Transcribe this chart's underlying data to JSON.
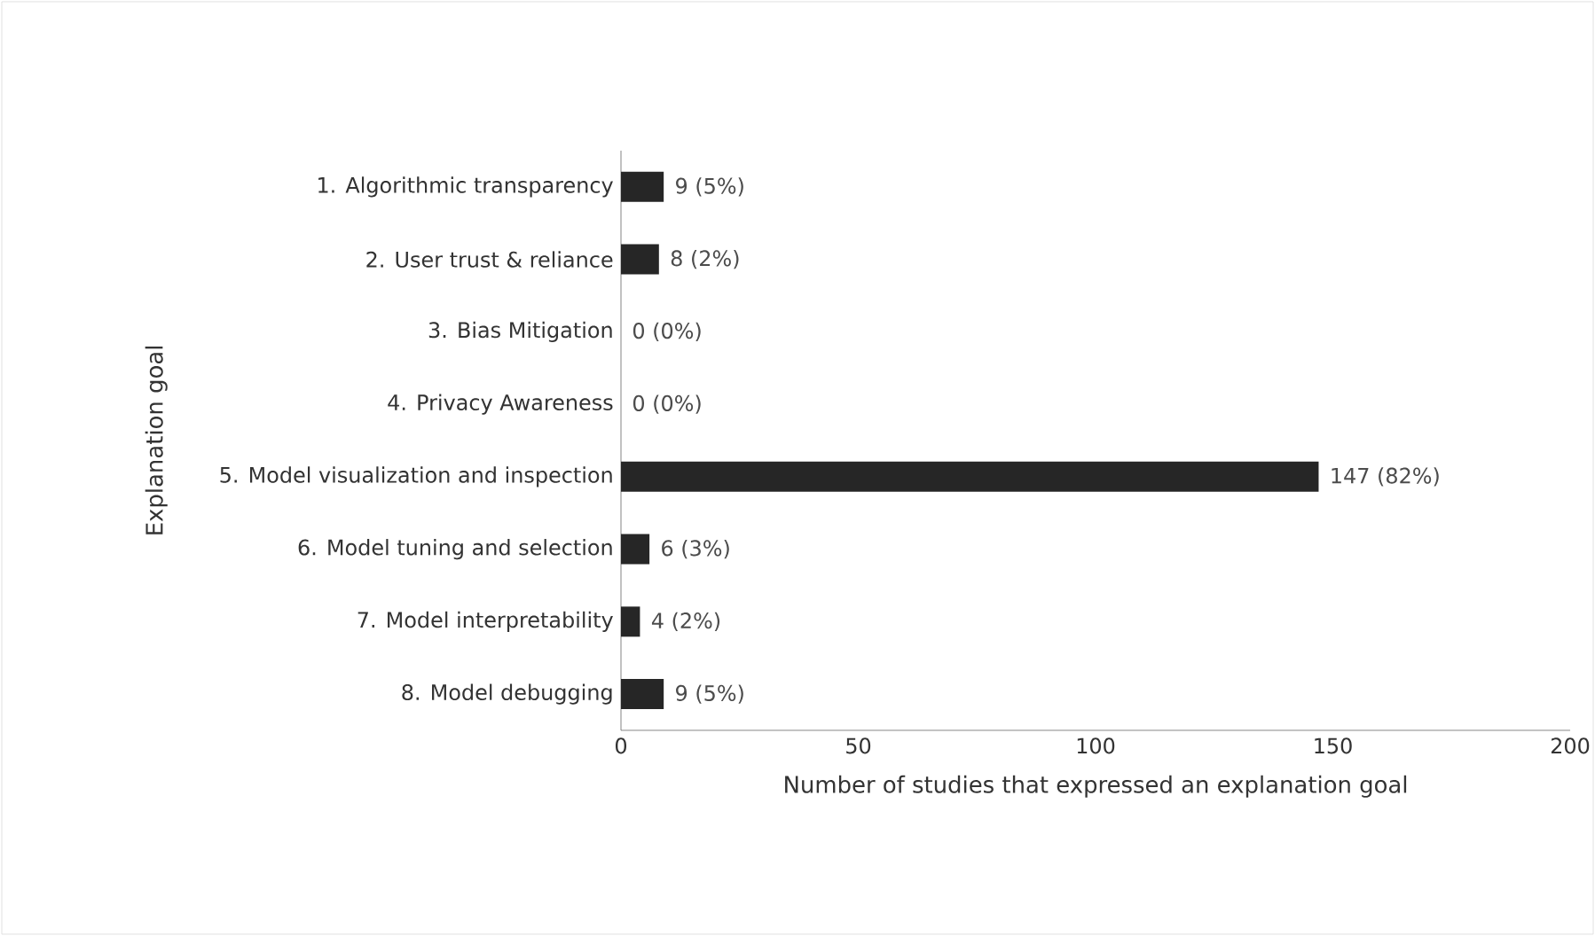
{
  "chart_data": {
    "type": "bar",
    "orientation": "horizontal",
    "categories": [
      "1. Algorithmic transparency",
      "2. User trust & reliance",
      "3. Bias Mitigation",
      "4. Privacy Awareness",
      "5. Model visualization and inspection",
      "6. Model tuning and selection",
      "7. Model interpretability",
      "8. Model debugging"
    ],
    "values": [
      9,
      8,
      0,
      0,
      147,
      6,
      4,
      9
    ],
    "value_labels": [
      "9 (5%)",
      "8 (2%)",
      "0 (0%)",
      "0 (0%)",
      "147 (82%)",
      "6 (3%)",
      "4 (2%)",
      "9 (5%)"
    ],
    "color": "#262626",
    "xlim": [
      0,
      200
    ],
    "xticks": [
      0,
      50,
      100,
      150,
      200
    ],
    "xlabel": "Number of studies that expressed an explanation goal",
    "ylabel": "Explanation goal",
    "grid": false
  }
}
